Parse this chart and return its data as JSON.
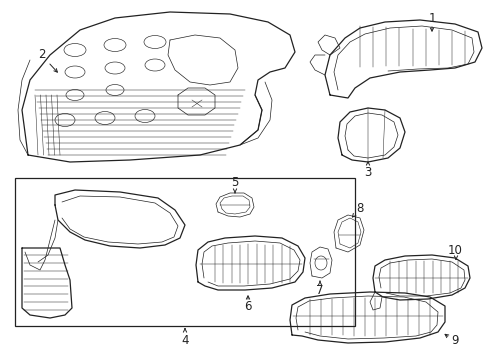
{
  "bg_color": "#ffffff",
  "line_color": "#222222",
  "fig_width": 4.9,
  "fig_height": 3.6,
  "dpi": 100,
  "lw_main": 0.9,
  "lw_detail": 0.5,
  "lw_thin": 0.35,
  "font_size": 8.5
}
